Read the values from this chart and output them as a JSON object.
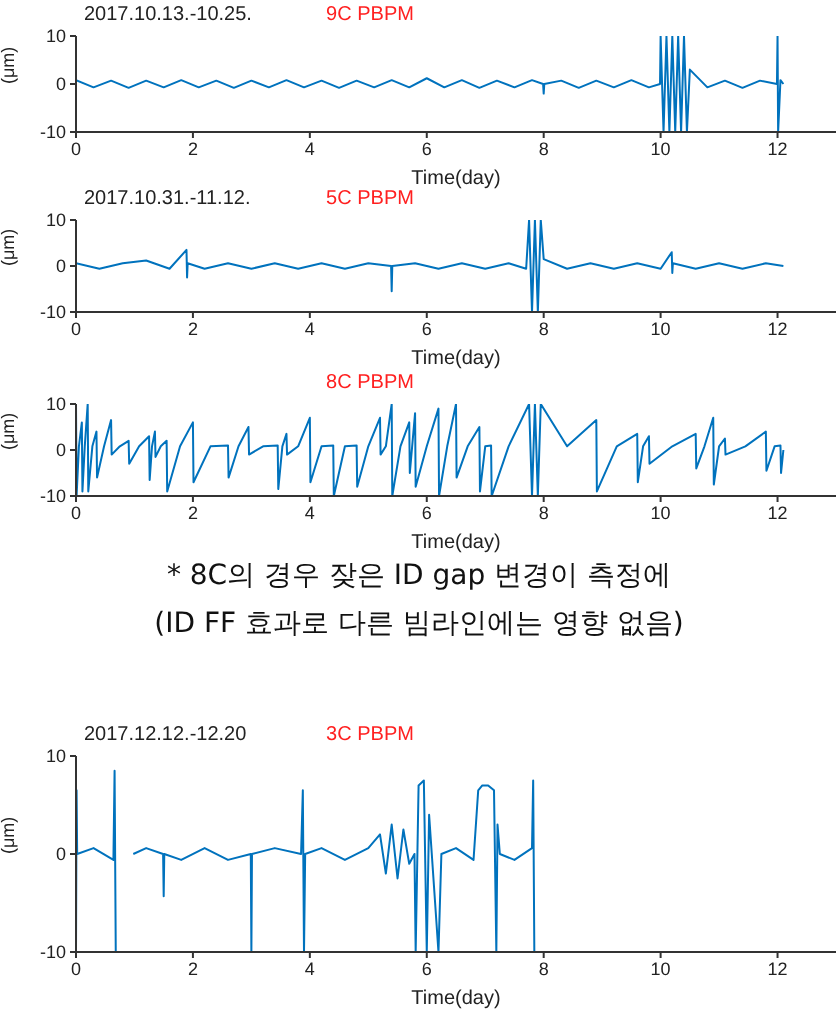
{
  "chart_data": [
    {
      "type": "line",
      "title": "9C PBPM",
      "subtitle": "2017.10.13.-10.25.",
      "xlabel": "Time(day)",
      "ylabel": "(μm)",
      "xlim": [
        0,
        13
      ],
      "xticks": [
        0,
        2,
        4,
        6,
        8,
        10,
        12
      ],
      "ylim": [
        -10,
        10
      ],
      "yticks": [
        -10,
        0,
        10
      ],
      "marker": "none",
      "line_style": "solid",
      "series": [
        {
          "color": "#0072bd",
          "x": [
            0,
            0.3,
            0.6,
            0.9,
            1.2,
            1.5,
            1.8,
            2.1,
            2.4,
            2.7,
            3.0,
            3.3,
            3.6,
            3.9,
            4.2,
            4.5,
            4.8,
            5.1,
            5.4,
            5.7,
            6.0,
            6.3,
            6.6,
            6.9,
            7.2,
            7.5,
            7.8,
            7.99,
            8.0,
            8.01,
            8.3,
            8.6,
            8.9,
            9.2,
            9.5,
            9.8,
            9.99,
            10.0,
            10.05,
            10.1,
            10.15,
            10.2,
            10.25,
            10.3,
            10.35,
            10.4,
            10.45,
            10.5,
            10.8,
            11.1,
            11.4,
            11.7,
            11.99,
            12.0,
            12.01,
            12.05,
            12.1
          ],
          "values": [
            0.8,
            -0.7,
            0.7,
            -0.8,
            0.7,
            -0.7,
            0.8,
            -0.7,
            0.7,
            -0.8,
            0.7,
            -0.7,
            0.8,
            -0.7,
            0.7,
            -0.8,
            0.7,
            -0.7,
            0.8,
            -0.7,
            1.2,
            -0.7,
            0.8,
            -0.8,
            0.7,
            -0.7,
            0.8,
            0,
            -2,
            0,
            0.7,
            -0.8,
            0.7,
            -0.7,
            0.8,
            -0.7,
            0,
            10,
            -10,
            10,
            -10,
            10,
            -10,
            10,
            -10,
            10,
            -10,
            3,
            -0.7,
            0.7,
            -0.8,
            0.7,
            0,
            10,
            -10,
            0.8,
            0
          ]
        }
      ]
    },
    {
      "type": "line",
      "title": "5C PBPM",
      "subtitle": "2017.10.31.-11.12.",
      "xlabel": "Time(day)",
      "ylabel": "(μm)",
      "xlim": [
        0,
        13
      ],
      "xticks": [
        0,
        2,
        4,
        6,
        8,
        10,
        12
      ],
      "ylim": [
        -10,
        10
      ],
      "yticks": [
        -10,
        0,
        10
      ],
      "marker": "none",
      "line_style": "solid",
      "series": [
        {
          "color": "#0072bd",
          "x": [
            0,
            0.4,
            0.8,
            1.2,
            1.6,
            1.89,
            1.9,
            1.91,
            2.2,
            2.6,
            3.0,
            3.4,
            3.8,
            4.2,
            4.6,
            5.0,
            5.39,
            5.4,
            5.41,
            5.8,
            6.2,
            6.6,
            7.0,
            7.4,
            7.7,
            7.75,
            7.8,
            7.85,
            7.9,
            7.95,
            8.0,
            8.4,
            8.8,
            9.2,
            9.6,
            10.0,
            10.19,
            10.2,
            10.21,
            10.6,
            11.0,
            11.4,
            11.8,
            12.1
          ],
          "values": [
            0.6,
            -0.6,
            0.6,
            1.2,
            -0.6,
            3.5,
            -2.5,
            0.6,
            -0.6,
            0.6,
            -0.6,
            0.6,
            -0.6,
            0.6,
            -0.6,
            0.6,
            0,
            -5.5,
            0,
            0.6,
            -0.6,
            0.6,
            -0.6,
            0.6,
            -0.6,
            10,
            -10,
            10,
            -10,
            10,
            1.5,
            -0.6,
            0.6,
            -0.6,
            0.6,
            -0.6,
            3,
            -1.5,
            0.6,
            -0.6,
            0.6,
            -0.6,
            0.6,
            0
          ]
        }
      ]
    },
    {
      "type": "line",
      "title": "8C PBPM",
      "xlabel": "Time(day)",
      "ylabel": "(μm)",
      "xlim": [
        0,
        13
      ],
      "xticks": [
        0,
        2,
        4,
        6,
        8,
        10,
        12
      ],
      "ylim": [
        -10,
        10
      ],
      "yticks": [
        -10,
        0,
        10
      ],
      "marker": "none",
      "line_style": "solid",
      "annotations": [
        "* 8C의 경우 잦은 ID gap 변경이 측정에",
        "(ID FF 효과로 다른 빔라인에는 영향 없음)"
      ],
      "series": [
        {
          "color": "#0072bd",
          "x": [
            0,
            0.01,
            0.05,
            0.1,
            0.11,
            0.15,
            0.2,
            0.21,
            0.28,
            0.35,
            0.36,
            0.48,
            0.6,
            0.61,
            0.75,
            0.9,
            0.91,
            1.08,
            1.25,
            1.26,
            1.3,
            1.35,
            1.36,
            1.45,
            1.55,
            1.56,
            1.78,
            2.0,
            2.01,
            2.3,
            2.6,
            2.61,
            2.78,
            2.95,
            2.96,
            3.2,
            3.45,
            3.46,
            3.53,
            3.6,
            3.61,
            3.8,
            4.0,
            4.01,
            4.2,
            4.4,
            4.41,
            4.6,
            4.8,
            4.81,
            5.0,
            5.2,
            5.21,
            5.3,
            5.4,
            5.41,
            5.55,
            5.7,
            5.71,
            5.75,
            5.8,
            5.81,
            6.0,
            6.2,
            6.21,
            6.35,
            6.5,
            6.51,
            6.7,
            6.9,
            6.91,
            7.0,
            7.1,
            7.11,
            7.4,
            7.75,
            7.8,
            7.85,
            7.9,
            7.95,
            8.4,
            8.9,
            8.91,
            9.25,
            9.6,
            9.61,
            9.7,
            9.8,
            9.81,
            10.2,
            10.6,
            10.61,
            10.75,
            10.9,
            10.91,
            11.0,
            11.1,
            11.11,
            11.45,
            11.8,
            11.81,
            11.95,
            12.05,
            12.06,
            12.1
          ],
          "values": [
            10,
            -10,
            0.8,
            6,
            -9,
            0.8,
            10,
            -9,
            0.8,
            4,
            -6,
            0.8,
            6.5,
            -1,
            0.8,
            2,
            -3,
            0.8,
            3,
            -6.5,
            0.8,
            4,
            -1.5,
            0.8,
            2,
            -9,
            0.8,
            6,
            -7,
            0.8,
            1,
            -6,
            0.8,
            5,
            -1,
            0.8,
            1,
            -8.5,
            0.8,
            3.5,
            -1,
            0.8,
            7,
            -7,
            0.8,
            1,
            -10,
            0.8,
            1,
            -8,
            0.8,
            7,
            -1,
            0.8,
            10,
            -10,
            0.8,
            6,
            -5,
            0.8,
            8,
            -8,
            0.8,
            9,
            -10,
            0.8,
            10,
            -6,
            0.8,
            5,
            -9,
            0.8,
            1,
            -10,
            0.8,
            10,
            -10,
            10,
            -10,
            10,
            0.8,
            6.5,
            -9,
            0.8,
            3.5,
            -7,
            0.8,
            3,
            -3,
            0.8,
            3.5,
            -4,
            0.8,
            7,
            -7.5,
            0.8,
            2.5,
            -1,
            0.8,
            4,
            -4.5,
            0.8,
            1,
            -5,
            0
          ]
        }
      ]
    },
    {
      "type": "line",
      "title": "3C PBPM",
      "subtitle": "2017.12.12.-12.20",
      "xlabel": "Time(day)",
      "ylabel": "(μm)",
      "xlim": [
        0,
        13
      ],
      "xticks": [
        0,
        2,
        4,
        6,
        8,
        10,
        12
      ],
      "ylim": [
        -10,
        10
      ],
      "yticks": [
        -10,
        0,
        10
      ],
      "marker": "none",
      "line_style": "solid",
      "series": [
        {
          "color": "#0072bd",
          "x": [
            0,
            0.01,
            0.02,
            0.3,
            0.64,
            0.66,
            0.68,
            0.96,
            0.98,
            1.2,
            1.49,
            1.5,
            1.51,
            1.8,
            2.2,
            2.6,
            2.99,
            3.0,
            3.01,
            3.4,
            3.85,
            3.88,
            3.9,
            3.92,
            4.2,
            4.6,
            5.0,
            5.2,
            5.3,
            5.4,
            5.5,
            5.6,
            5.7,
            5.79,
            5.81,
            5.86,
            5.95,
            6.0,
            6.04,
            6.2,
            6.25,
            6.5,
            6.8,
            6.88,
            6.95,
            7.05,
            7.15,
            7.19,
            7.21,
            7.25,
            7.5,
            7.8,
            7.82,
            7.84
          ],
          "values": [
            -10,
            6.5,
            0,
            0.6,
            -0.6,
            8.5,
            -10,
            null,
            0,
            0.6,
            0,
            -4.3,
            0,
            -0.6,
            0.6,
            -0.6,
            0,
            -10,
            0,
            0.6,
            0,
            6.5,
            -10,
            0,
            0.6,
            -0.6,
            0.6,
            2,
            -2,
            3,
            -2.5,
            2.5,
            -1,
            0,
            -10,
            7,
            7.5,
            -10,
            4,
            -10,
            0,
            0.6,
            -0.6,
            6.5,
            7,
            7,
            6.5,
            -10,
            3,
            0,
            -0.6,
            0.6,
            7.5,
            -10
          ]
        }
      ]
    }
  ]
}
